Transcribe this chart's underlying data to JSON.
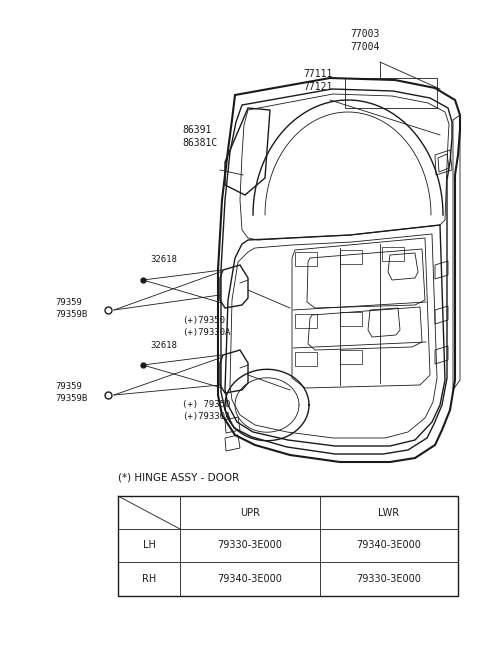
{
  "bg_color": "#ffffff",
  "fig_width": 4.8,
  "fig_height": 6.56,
  "dpi": 100,
  "dark": "#1a1a1a",
  "gray": "#666666",
  "table_title": "(*) HINGE ASSY - DOOR",
  "table": {
    "headers": [
      "",
      "UPR",
      "LWR"
    ],
    "rows": [
      [
        "LH",
        "79330-3E000",
        "79340-3E000"
      ],
      [
        "RH",
        "79340-3E000",
        "79330-3E000"
      ]
    ]
  },
  "label_32618_up": "32618",
  "label_79359_up": "79359\n79359B",
  "label_79350_up": "(+)79350\n(+)79330A",
  "label_32618_lo": "32618",
  "label_79359_lo": "79359\n79359B",
  "label_79350_lo": "(+) 79350\n(+)79330A",
  "label_77003": "77003\n77004",
  "label_77111": "77111\n77121",
  "label_86391": "86391\n86381C"
}
